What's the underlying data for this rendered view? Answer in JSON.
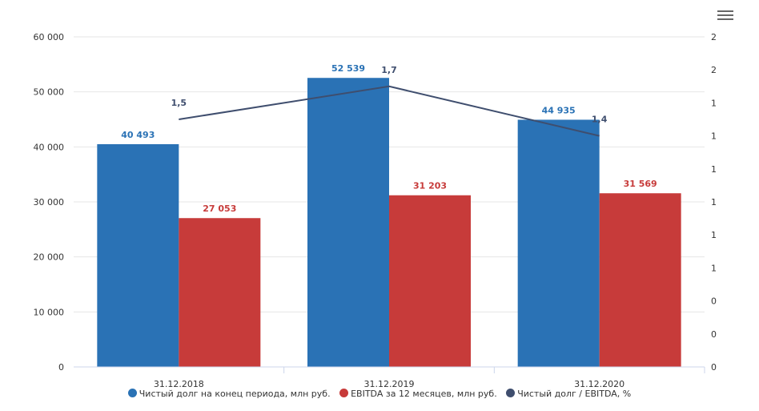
{
  "chart_data": {
    "type": "bar",
    "categories": [
      "31.12.2018",
      "31.12.2019",
      "31.12.2020"
    ],
    "series": [
      {
        "name": "Чистый долг на конец периода, млн руб.",
        "type": "bar",
        "axis": "left",
        "values": [
          40493,
          52539,
          44935
        ],
        "labels": [
          "40 493",
          "52 539",
          "44 935"
        ],
        "color": "#2a72b5"
      },
      {
        "name": "EBITDA за 12 месяцев, млн руб.",
        "type": "bar",
        "axis": "left",
        "values": [
          27053,
          31203,
          31569
        ],
        "labels": [
          "27 053",
          "31 203",
          "31 569"
        ],
        "color": "#c73b3a"
      },
      {
        "name": "Чистый долг / EBITDA, %",
        "type": "line",
        "axis": "right",
        "values": [
          1.5,
          1.7,
          1.4
        ],
        "labels": [
          "1,5",
          "1,7",
          "1,4"
        ],
        "color": "#3f4e6e"
      }
    ],
    "y_left": {
      "ticks": [
        "0",
        "10 000",
        "20 000",
        "30 000",
        "40 000",
        "50 000",
        "60 000"
      ],
      "ylim": [
        0,
        60000
      ]
    },
    "y_right": {
      "ticks": [
        "0",
        "0",
        "0",
        "1",
        "1",
        "1",
        "1",
        "1",
        "1",
        "2",
        "2"
      ],
      "ylim": [
        0,
        2
      ]
    },
    "legend": "bottom",
    "grid": true
  },
  "menu_icon": "hamburger-menu-icon"
}
